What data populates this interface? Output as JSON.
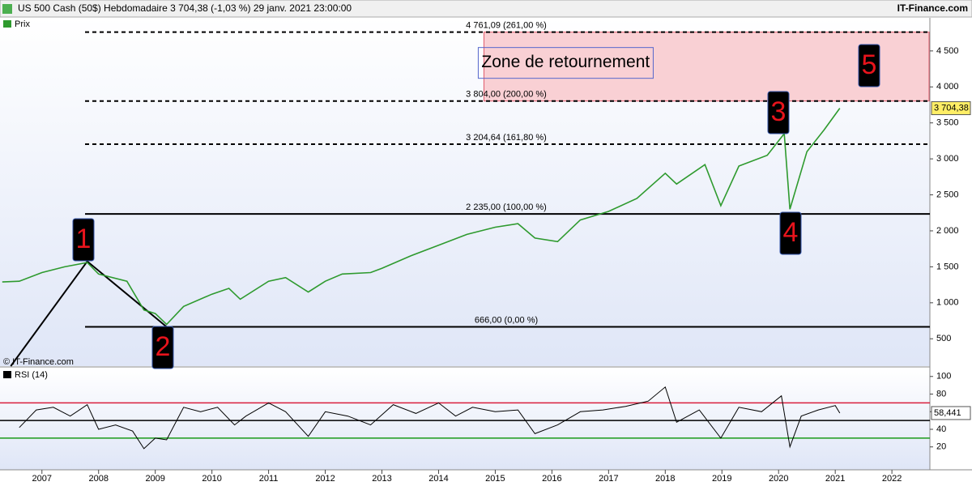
{
  "header": {
    "title": "US 500 Cash (50$) Hebdomadaire 3 704,38 (-1,03 %) 29 janv. 2021 23:00:00",
    "brand": "IT-Finance.com",
    "watermark": "© IT-Finance.com"
  },
  "chart_data": [
    {
      "type": "line",
      "series": [
        {
          "name": "Prix",
          "color": "#2e9a2e",
          "x": [
            2006.3,
            2006.6,
            2007.0,
            2007.4,
            2007.8,
            2008.0,
            2008.5,
            2008.8,
            2009.0,
            2009.2,
            2009.5,
            2010.0,
            2010.3,
            2010.5,
            2011.0,
            2011.3,
            2011.7,
            2012.0,
            2012.3,
            2012.8,
            2013.0,
            2013.5,
            2014.0,
            2014.5,
            2015.0,
            2015.4,
            2015.7,
            2016.1,
            2016.5,
            2017.0,
            2017.5,
            2018.0,
            2018.2,
            2018.7,
            2018.98,
            2019.3,
            2019.8,
            2020.1,
            2020.2,
            2020.5,
            2020.8,
            2021.08
          ],
          "values": [
            1290,
            1300,
            1420,
            1500,
            1560,
            1400,
            1300,
            900,
            850,
            700,
            950,
            1120,
            1200,
            1050,
            1300,
            1350,
            1150,
            1300,
            1400,
            1420,
            1480,
            1650,
            1800,
            1950,
            2050,
            2100,
            1900,
            1850,
            2150,
            2270,
            2450,
            2800,
            2650,
            2920,
            2350,
            2900,
            3050,
            3350,
            2300,
            3100,
            3400,
            3704.38
          ]
        }
      ],
      "last_value": 3704.38,
      "last_label": "3 704,38",
      "xlim": [
        2006.26,
        2022.67
      ],
      "xticks": [
        2007,
        2008,
        2009,
        2010,
        2011,
        2012,
        2013,
        2014,
        2015,
        2016,
        2017,
        2018,
        2019,
        2020,
        2021,
        2022
      ],
      "ylim": [
        120,
        4960
      ],
      "yticks": [
        500,
        {
          "value": 1000,
          "label": "1 000"
        },
        {
          "value": 1500,
          "label": "1 500"
        },
        {
          "value": 2000,
          "label": "2 000"
        },
        {
          "value": 2500,
          "label": "2 500"
        },
        {
          "value": 3000,
          "label": "3 000"
        },
        {
          "value": 3500,
          "label": "3 500"
        },
        {
          "value": 4000,
          "label": "4 000"
        },
        {
          "value": 4500,
          "label": "4 500"
        }
      ],
      "levels": [
        {
          "value": 4761.09,
          "label": "4 761,09 (261,00 %)",
          "dashed": true
        },
        {
          "value": 3804,
          "label": "3 804,00 (200,00 %)",
          "dashed": true
        },
        {
          "value": 3204.64,
          "label": "3 204,64 (161,80 %)",
          "dashed": true
        },
        {
          "value": 2235,
          "label": "2 235,00 (100,00 %)",
          "dashed": false
        },
        {
          "value": 666,
          "label": "666,00 (0,00 %)",
          "dashed": false
        }
      ],
      "zone": {
        "label": "Zone de retournement",
        "x": 2014.8,
        "from": 3804,
        "to": 4761.09,
        "color": "#f9d0d4"
      },
      "wave_line": {
        "x": [
          2006.45,
          2007.8,
          2009.2
        ],
        "values": [
          120,
          1576,
          666
        ]
      },
      "waves": [
        "1",
        "2",
        "3",
        "4",
        "5"
      ]
    },
    {
      "type": "line",
      "series": [
        {
          "name": "RSI (14)",
          "color": "#000000",
          "x": [
            2006.6,
            2006.9,
            2007.2,
            2007.5,
            2007.8,
            2008.0,
            2008.3,
            2008.6,
            2008.8,
            2009.0,
            2009.2,
            2009.5,
            2009.8,
            2010.1,
            2010.4,
            2010.6,
            2011.0,
            2011.3,
            2011.7,
            2012.0,
            2012.4,
            2012.8,
            2013.2,
            2013.6,
            2014.0,
            2014.3,
            2014.6,
            2015.0,
            2015.4,
            2015.7,
            2016.1,
            2016.5,
            2016.9,
            2017.3,
            2017.7,
            2018.0,
            2018.2,
            2018.6,
            2018.98,
            2019.3,
            2019.7,
            2020.05,
            2020.2,
            2020.4,
            2020.7,
            2021.0,
            2021.08
          ],
          "values": [
            42,
            62,
            65,
            55,
            68,
            40,
            45,
            38,
            18,
            30,
            28,
            65,
            60,
            65,
            45,
            55,
            70,
            60,
            32,
            60,
            55,
            45,
            68,
            58,
            70,
            55,
            65,
            60,
            62,
            35,
            45,
            60,
            62,
            66,
            72,
            88,
            48,
            62,
            30,
            65,
            60,
            78,
            20,
            55,
            62,
            67,
            58.441
          ]
        }
      ],
      "last_value": 58.441,
      "last_label": "58,441",
      "xlim": [
        2006.26,
        2022.67
      ],
      "ylim": [
        -6,
        109
      ],
      "yticks": [
        20,
        40,
        60,
        80,
        100
      ],
      "levels": [
        {
          "value": 70,
          "color": "#d81e3c"
        },
        {
          "value": 50,
          "color": "#000000"
        },
        {
          "value": 30,
          "color": "#1a9a1a"
        }
      ]
    }
  ]
}
